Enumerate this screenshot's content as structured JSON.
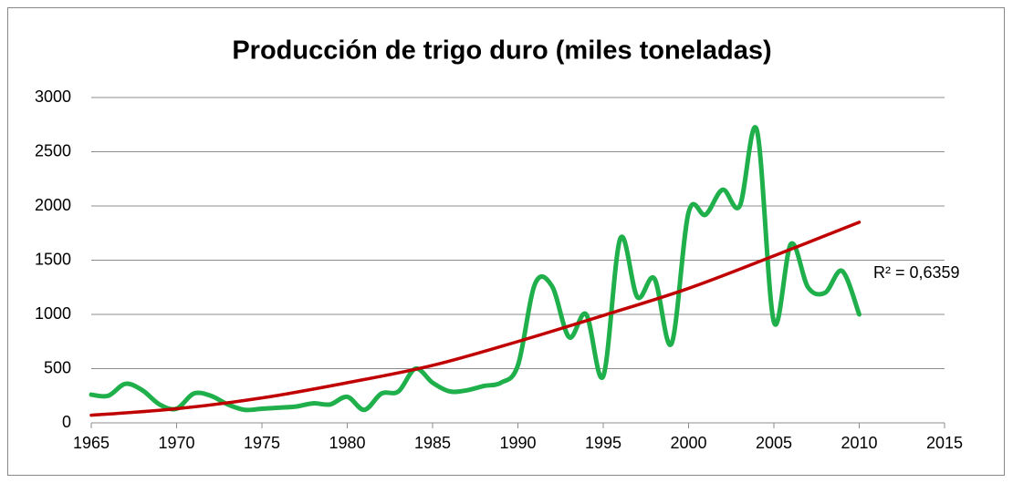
{
  "chart_data": {
    "type": "line",
    "title": "Producción de trigo duro (miles toneladas)",
    "x": [
      1965,
      1966,
      1967,
      1968,
      1969,
      1970,
      1971,
      1972,
      1973,
      1974,
      1975,
      1976,
      1977,
      1978,
      1979,
      1980,
      1981,
      1982,
      1983,
      1984,
      1985,
      1986,
      1987,
      1988,
      1989,
      1990,
      1991,
      1992,
      1993,
      1994,
      1995,
      1996,
      1997,
      1998,
      1999,
      2000,
      2001,
      2002,
      2003,
      2004,
      2005,
      2006,
      2007,
      2008,
      2009,
      2010
    ],
    "series": [
      {
        "color": "#1faf4b",
        "values": [
          260,
          250,
          360,
          300,
          170,
          130,
          270,
          250,
          170,
          120,
          130,
          140,
          150,
          180,
          170,
          240,
          120,
          270,
          290,
          500,
          370,
          290,
          300,
          340,
          370,
          530,
          1280,
          1260,
          790,
          1000,
          430,
          1700,
          1160,
          1330,
          730,
          1940,
          1920,
          2150,
          2000,
          2700,
          930,
          1650,
          1250,
          1200,
          1400,
          1000
        ]
      },
      {
        "color": "#c00000",
        "x": [
          1965,
          1970,
          1975,
          1980,
          1985,
          1990,
          1995,
          2000,
          2005,
          2010
        ],
        "values": [
          70,
          130,
          230,
          370,
          530,
          750,
          990,
          1240,
          1540,
          1850
        ]
      }
    ],
    "annotation": "R² = 0,6359",
    "xlim": [
      1965,
      2015
    ],
    "xticks": [
      1965,
      1970,
      1975,
      1980,
      1985,
      1990,
      1995,
      2000,
      2005,
      2010,
      2015
    ],
    "ylim": [
      0,
      3000
    ],
    "yticks": [
      0,
      500,
      1000,
      1500,
      2000,
      2500,
      3000
    ],
    "grid": true
  }
}
